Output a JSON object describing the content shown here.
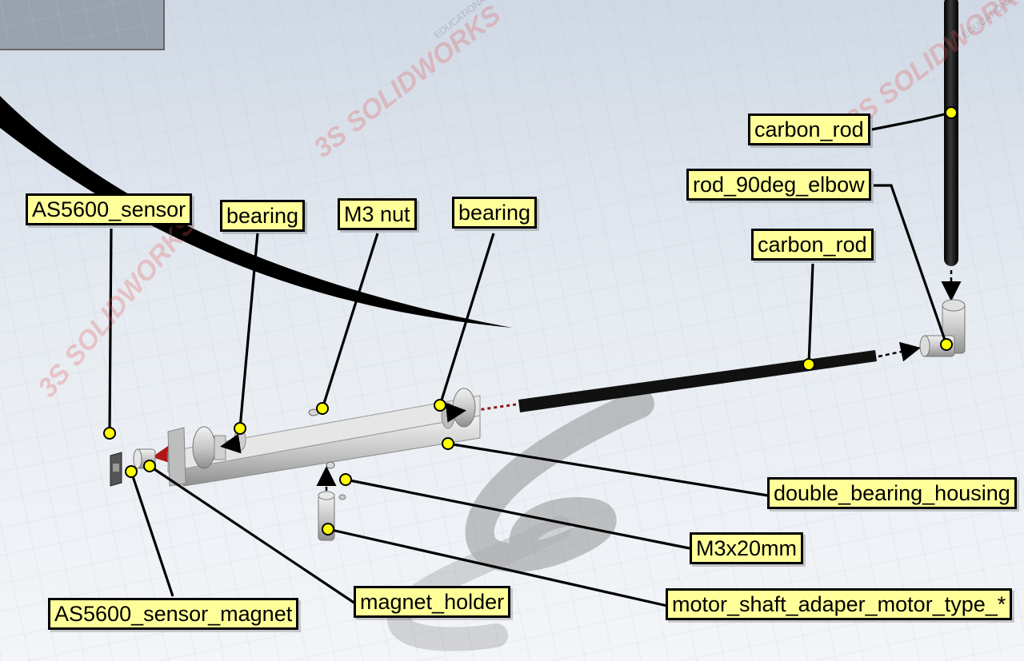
{
  "watermark": {
    "brand": "3S SOLIDWORKS",
    "edition": "EDUCATIONAL"
  },
  "labels": {
    "carbon_rod_top": "carbon_rod",
    "rod_elbow": "rod_90deg_elbow",
    "carbon_rod_mid": "carbon_rod",
    "as5600_sensor": "AS5600_sensor",
    "bearing_left": "bearing",
    "m3_nut": "M3 nut",
    "bearing_right": "bearing",
    "double_bearing_housing": "double_bearing_housing",
    "m3x20mm": "M3x20mm",
    "as5600_sensor_magnet": "AS5600_sensor_magnet",
    "magnet_holder": "magnet_holder",
    "motor_shaft_adapter": "motor_shaft_adaper_motor_type_*"
  },
  "colors": {
    "callout_fill": "#ffff99",
    "leader": "#000000",
    "anchor_dot": "#ffff00",
    "explode_line": "#8b1a1a",
    "rod": "#111111",
    "part_metal": "#c9c9c9"
  }
}
